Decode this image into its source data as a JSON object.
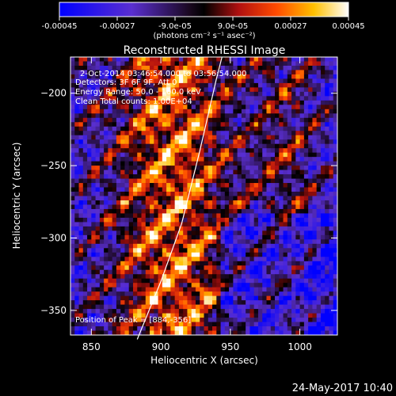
{
  "chart_data": {
    "type": "heatmap",
    "title": "Reconstructed RHESSI Image",
    "xlabel": "Heliocentric X (arcsec)",
    "ylabel": "Heliocentric Y (arcsec)",
    "xlim": [
      835,
      1027
    ],
    "ylim": [
      -367,
      -175
    ],
    "x_ticks": [
      850,
      900,
      950,
      1000
    ],
    "y_ticks": [
      -200,
      -250,
      -300,
      -350
    ],
    "colorbar": {
      "ticks": [
        "-0.00045",
        "-0.00027",
        "-9.0e-05",
        "9.0e-05",
        "0.00027",
        "0.00045"
      ],
      "range": [
        -0.00045,
        0.00045
      ],
      "unit_label": "(photons cm⁻² s⁻¹ asec⁻²)"
    },
    "annotations": [
      "2-Oct-2014 03:46:54.000 to 03:56:54.000",
      "Detectors: 3F 6F 9F, Att 0",
      "Energy Range: 50.0 - 100.0 keV",
      "Clean    Total counts: 1.00E+04"
    ],
    "peak_label": "Position of Peak = [884,-356]",
    "limb_curve": [
      [
        883,
        -370
      ],
      [
        900,
        -330
      ],
      [
        915,
        -290
      ],
      [
        928,
        -240
      ],
      [
        940,
        -190
      ],
      [
        944,
        -175
      ]
    ],
    "grid": false,
    "pixel_grid": [
      64,
      64
    ]
  },
  "footer": {
    "date_text": "24-May-2017 10:40"
  },
  "colors": {
    "background": "#000000",
    "text": "#ffffff",
    "colormap_low": "#0000ff",
    "colormap_mid": "#000000",
    "colormap_high": "#ffffff"
  }
}
